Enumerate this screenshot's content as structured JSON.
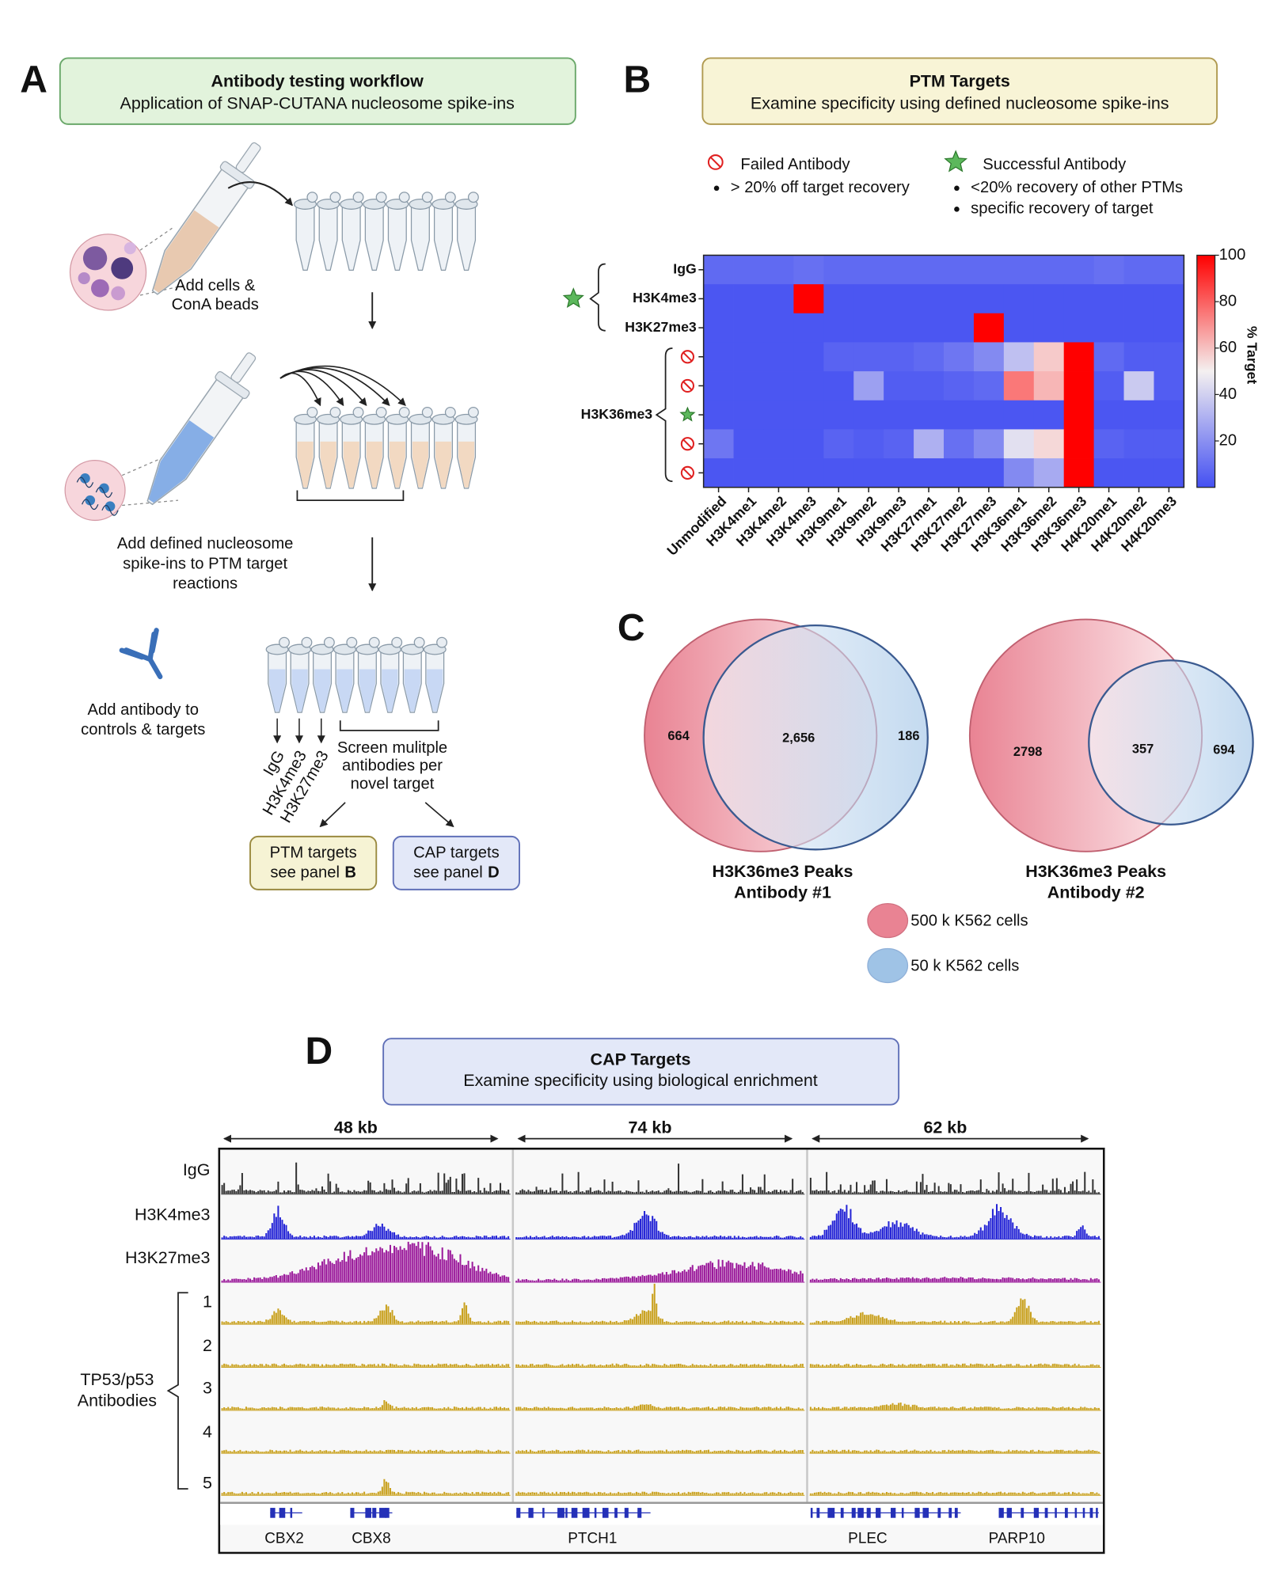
{
  "panel_a": {
    "letter": "A",
    "header": {
      "title": "Antibody testing workflow",
      "subtitle": "Application of SNAP-CUTANA nucleosome spike-ins"
    },
    "step1": [
      "Add cells &",
      "ConA beads"
    ],
    "step2": [
      "Add defined nucleosome",
      "spike-ins to PTM target",
      "reactions"
    ],
    "step3": [
      "Add antibody to",
      "controls & targets"
    ],
    "controls": [
      "IgG",
      "H3K4me3",
      "H3K27me3"
    ],
    "screen": [
      "Screen mulitple",
      "antibodies per",
      "novel target"
    ],
    "ptm_box": {
      "title": "PTM targets",
      "text": "see panel",
      "panel": "B"
    },
    "cap_box": {
      "title": "CAP targets",
      "text": "see panel",
      "panel": "D"
    }
  },
  "panel_b": {
    "letter": "B",
    "header": {
      "title": "PTM Targets",
      "subtitle": "Examine specificity using defined nucleosome spike-ins"
    },
    "legend": {
      "failed": {
        "title": "Failed Antibody",
        "points": [
          "> 20% off target recovery"
        ]
      },
      "success": {
        "title": "Successful Antibody",
        "points": [
          "<20% recovery of other PTMs",
          "specific recovery of target"
        ]
      }
    }
  },
  "chart_data": {
    "type": "heatmap",
    "rows": [
      "IgG",
      "H3K4me3",
      "H3K27me3",
      null,
      null,
      null,
      null,
      null
    ],
    "row_group": "H3K36me3",
    "row_status": [
      null,
      "success",
      null,
      "fail",
      "fail",
      "success",
      "fail",
      "fail"
    ],
    "columns": [
      "Unmodified",
      "H3K4me1",
      "H3K4me2",
      "H3K4me3",
      "H3K9me1",
      "H3K9me2",
      "H3K9me3",
      "H3K27me1",
      "H3K27me2",
      "H3K27me3",
      "H3K36me1",
      "H3K36me2",
      "H3K36me3",
      "H4K20me1",
      "H4K20me2",
      "H4K20me3"
    ],
    "values": [
      [
        8,
        8,
        8,
        10,
        8,
        8,
        8,
        8,
        8,
        8,
        8,
        8,
        8,
        10,
        8,
        8
      ],
      [
        2,
        2,
        2,
        100,
        2,
        2,
        2,
        2,
        2,
        2,
        2,
        2,
        2,
        2,
        2,
        2
      ],
      [
        2,
        2,
        2,
        2,
        2,
        2,
        2,
        2,
        2,
        100,
        2,
        2,
        2,
        2,
        2,
        2
      ],
      [
        2,
        2,
        2,
        2,
        6,
        6,
        6,
        8,
        12,
        18,
        35,
        58,
        100,
        8,
        4,
        4
      ],
      [
        2,
        2,
        2,
        2,
        2,
        25,
        4,
        4,
        6,
        8,
        75,
        62,
        100,
        4,
        38,
        4
      ],
      [
        2,
        2,
        2,
        2,
        2,
        2,
        2,
        2,
        2,
        2,
        2,
        2,
        100,
        2,
        2,
        2
      ],
      [
        12,
        2,
        2,
        2,
        6,
        4,
        6,
        30,
        10,
        18,
        45,
        55,
        100,
        6,
        4,
        4
      ],
      [
        2,
        2,
        2,
        2,
        2,
        2,
        2,
        2,
        2,
        2,
        18,
        28,
        100,
        2,
        2,
        2
      ]
    ],
    "zlim": [
      0,
      100
    ],
    "zticks": [
      20,
      40,
      60,
      80,
      100
    ],
    "colorbar_label": "% Target",
    "colormap": [
      "#4450f2",
      "#f4f0f0",
      "#ff0000"
    ]
  },
  "panel_c": {
    "letter": "C",
    "venns": [
      {
        "counts": [
          "664",
          "2,656",
          "186"
        ],
        "title": [
          "H3K36me3 Peaks",
          "Antibody #1"
        ]
      },
      {
        "counts": [
          "2798",
          "357",
          "694"
        ],
        "title": [
          "H3K36me3 Peaks",
          "Antibody #2"
        ]
      }
    ],
    "legend": [
      {
        "label": "500 k K562 cells",
        "color": "#e98393"
      },
      {
        "label": "50 k K562 cells",
        "color": "#9fc3e6"
      }
    ]
  },
  "panel_d": {
    "letter": "D",
    "header": {
      "title": "CAP Targets",
      "subtitle": "Examine specificity using biological enrichment"
    },
    "regions": [
      "48 kb",
      "74 kb",
      "62 kb"
    ],
    "tracks": [
      {
        "label": "IgG",
        "color": "#333333"
      },
      {
        "label": "H3K4me3",
        "color": "#2424d6"
      },
      {
        "label": "H3K27me3",
        "color": "#9b1a9b"
      },
      {
        "label": "1",
        "color": "#c9a11e"
      },
      {
        "label": "2",
        "color": "#c9a11e"
      },
      {
        "label": "3",
        "color": "#c9a11e"
      },
      {
        "label": "4",
        "color": "#c9a11e"
      },
      {
        "label": "5",
        "color": "#c9a11e"
      }
    ],
    "group_label": [
      "TP53/p53",
      "Antibodies"
    ],
    "genes": [
      "CBX2",
      "CBX8",
      "PTCH1",
      "PLEC",
      "PARP10"
    ]
  }
}
